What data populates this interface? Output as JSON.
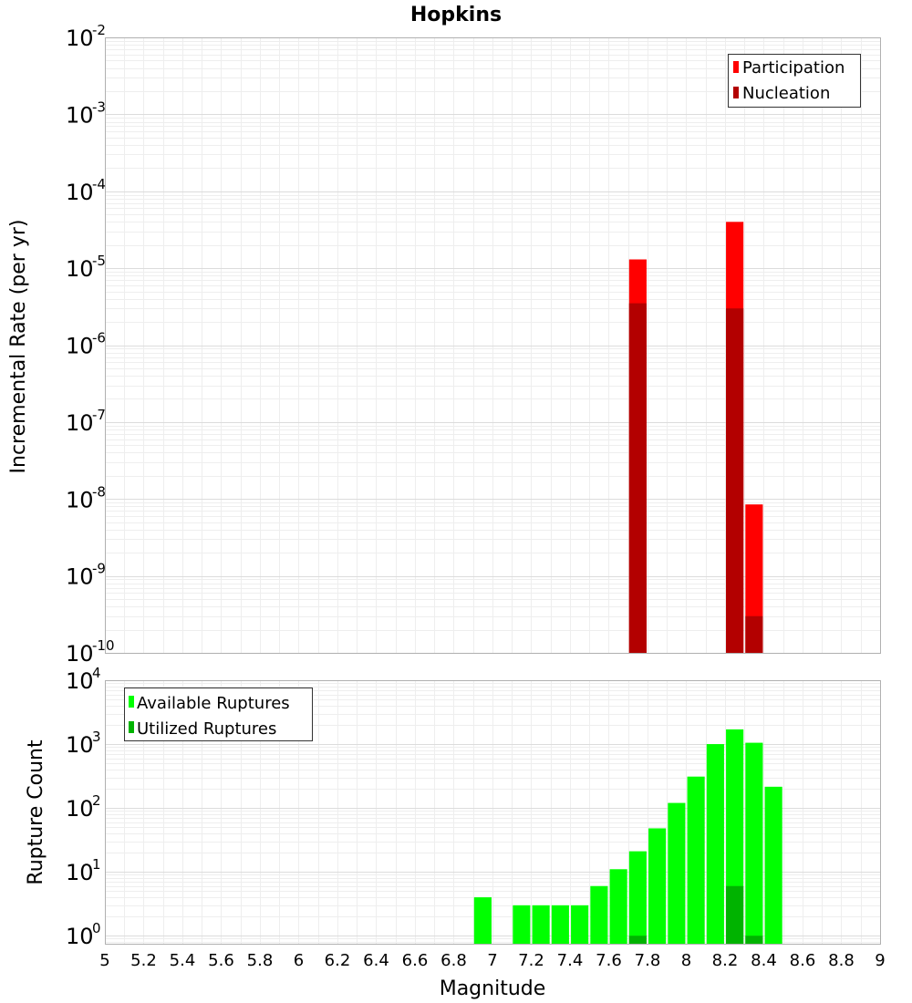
{
  "chart_data": [
    {
      "type": "bar",
      "title": "Hopkins",
      "xlabel": "",
      "ylabel": "Incremental Rate (per yr)",
      "yscale": "log",
      "ylim": [
        1e-10,
        0.01
      ],
      "xlim": [
        5,
        9
      ],
      "grid": true,
      "legend_position": "top-right",
      "series": [
        {
          "name": "Participation",
          "color": "#ff0000",
          "x": [
            7.75,
            8.25,
            8.35
          ],
          "values": [
            1.3e-05,
            4e-05,
            8.5e-09
          ]
        },
        {
          "name": "Nucleation",
          "color": "#b30000",
          "x": [
            7.75,
            8.25,
            8.35
          ],
          "values": [
            3.5e-06,
            3e-06,
            3e-10
          ]
        }
      ],
      "ytick_exponents": [
        "-2",
        "-3",
        "-4",
        "-5",
        "-6",
        "-7",
        "-8",
        "-9",
        "-10"
      ]
    },
    {
      "type": "bar",
      "title": "",
      "xlabel": "Magnitude",
      "ylabel": "Rupture Count",
      "yscale": "log",
      "ylim": [
        0.75,
        10000
      ],
      "xlim": [
        5,
        9
      ],
      "grid": true,
      "legend_position": "top-left",
      "series": [
        {
          "name": "Available Ruptures",
          "color": "#00ff00",
          "x": [
            6.95,
            7.15,
            7.25,
            7.35,
            7.45,
            7.55,
            7.65,
            7.75,
            7.85,
            7.95,
            8.05,
            8.15,
            8.25,
            8.35,
            8.45
          ],
          "values": [
            4,
            3,
            3,
            3,
            3,
            6,
            11,
            21,
            48,
            120,
            310,
            1000,
            1700,
            1050,
            215
          ]
        },
        {
          "name": "Utilized Ruptures",
          "color": "#00b300",
          "x": [
            7.75,
            8.25,
            8.35
          ],
          "values": [
            1,
            6,
            1
          ]
        }
      ],
      "ytick_exponents": [
        "4",
        "3",
        "2",
        "1",
        "0"
      ],
      "xticks": [
        "5",
        "5.2",
        "5.4",
        "5.6",
        "5.8",
        "6",
        "6.2",
        "6.4",
        "6.6",
        "6.8",
        "7",
        "7.2",
        "7.4",
        "7.6",
        "7.8",
        "8",
        "8.2",
        "8.4",
        "8.6",
        "8.8",
        "9"
      ]
    }
  ]
}
